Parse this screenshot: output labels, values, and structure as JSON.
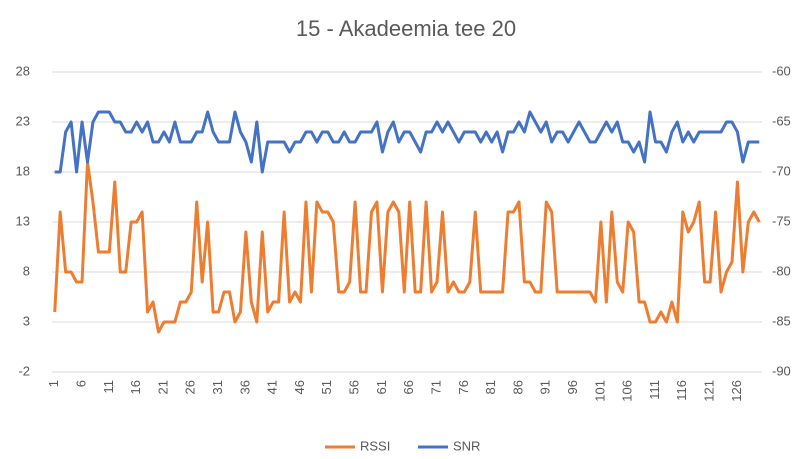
{
  "chart_data": {
    "type": "line",
    "title": "15 - Akadeemia tee 20",
    "categories": [
      1,
      null,
      null,
      null,
      null,
      6,
      null,
      null,
      null,
      null,
      11,
      null,
      null,
      null,
      null,
      16,
      null,
      null,
      null,
      null,
      21,
      null,
      null,
      null,
      null,
      26,
      null,
      null,
      null,
      null,
      31,
      null,
      null,
      null,
      null,
      36,
      null,
      null,
      null,
      null,
      41,
      null,
      null,
      null,
      null,
      46,
      null,
      null,
      null,
      null,
      51,
      null,
      null,
      null,
      null,
      56,
      null,
      null,
      null,
      null,
      61,
      null,
      null,
      null,
      null,
      66,
      null,
      null,
      null,
      null,
      71,
      null,
      null,
      null,
      null,
      76,
      null,
      null,
      null,
      null,
      81,
      null,
      null,
      null,
      null,
      86,
      null,
      null,
      null,
      null,
      91,
      null,
      null,
      null,
      null,
      96,
      null,
      null,
      null,
      null,
      101,
      null,
      null,
      null,
      null,
      106,
      null,
      null,
      null,
      null,
      111,
      null,
      null,
      null,
      null,
      116,
      null,
      null,
      null,
      null,
      121,
      null,
      null,
      null,
      null,
      126,
      null,
      null,
      null,
      null
    ],
    "series": [
      {
        "name": "RSSI",
        "color": "#ed7d31",
        "axis": "y2",
        "values": [
          -84,
          -74,
          -80,
          -80,
          -81,
          -81,
          -69,
          -73,
          -78,
          -78,
          -78,
          -71,
          -80,
          -80,
          -75,
          -75,
          -74,
          -84,
          -83,
          -86,
          -85,
          -85,
          -85,
          -83,
          -83,
          -82,
          -73,
          -81,
          -75,
          -84,
          -84,
          -82,
          -82,
          -85,
          -84,
          -76,
          -83,
          -85,
          -76,
          -84,
          -83,
          -83,
          -74,
          -83,
          -82,
          -83,
          -73,
          -82,
          -73,
          -74,
          -74,
          -75,
          -82,
          -82,
          -81,
          -73,
          -82,
          -82,
          -74,
          -73,
          -82,
          -74,
          -73,
          -74,
          -82,
          -73,
          -82,
          -82,
          -73,
          -82,
          -81,
          -74,
          -82,
          -81,
          -82,
          -82,
          -81,
          -74,
          -82,
          -82,
          -82,
          -82,
          -82,
          -74,
          -74,
          -73,
          -81,
          -81,
          -82,
          -82,
          -73,
          -74,
          -82,
          -82,
          -82,
          -82,
          -82,
          -82,
          -82,
          -83,
          -75,
          -83,
          -74,
          -81,
          -82,
          -75,
          -76,
          -83,
          -83,
          -85,
          -85,
          -84,
          -85,
          -83,
          -85,
          -74,
          -76,
          -75,
          -73,
          -81,
          -81,
          -74,
          -82,
          -80,
          -79,
          -71,
          -80,
          -75,
          -74,
          -75
        ]
      },
      {
        "name": "SNR",
        "color": "#4472c4",
        "values": [
          18,
          18,
          22,
          23,
          18,
          23,
          19,
          23,
          24,
          24,
          24,
          23,
          23,
          22,
          22,
          23,
          22,
          23,
          21,
          21,
          22,
          21,
          23,
          21,
          21,
          21,
          22,
          22,
          24,
          22,
          21,
          21,
          21,
          24,
          22,
          21,
          19,
          23,
          18,
          21,
          21,
          21,
          21,
          20,
          21,
          21,
          22,
          22,
          21,
          22,
          22,
          21,
          21,
          22,
          21,
          21,
          22,
          22,
          22,
          23,
          20,
          22,
          23,
          21,
          22,
          22,
          21,
          20,
          22,
          22,
          23,
          22,
          23,
          22,
          21,
          22,
          22,
          22,
          21,
          22,
          21,
          22,
          20,
          22,
          22,
          23,
          22,
          24,
          23,
          22,
          23,
          21,
          22,
          22,
          21,
          22,
          23,
          22,
          21,
          21,
          22,
          23,
          22,
          23,
          21,
          21,
          20,
          21,
          19,
          24,
          21,
          21,
          20,
          22,
          23,
          21,
          22,
          21,
          22,
          22,
          22,
          22,
          22,
          23,
          23,
          22,
          19,
          21,
          21,
          21
        ]
      }
    ],
    "ylim": [
      -2,
      28
    ],
    "yticks": [
      -2,
      3,
      8,
      13,
      18,
      23,
      28
    ],
    "y2lim": [
      -90,
      -60
    ],
    "y2ticks": [
      -90,
      -85,
      -80,
      -75,
      -70,
      -65,
      -60
    ],
    "grid": true,
    "legend": "bottom"
  }
}
